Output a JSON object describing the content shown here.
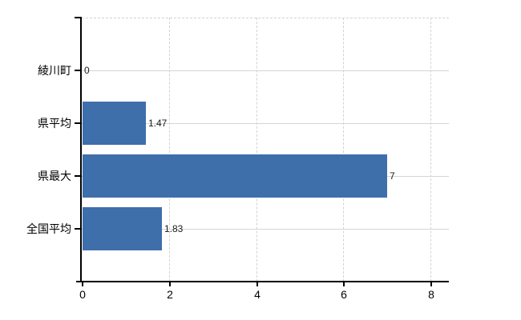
{
  "chart_data": {
    "type": "bar",
    "orientation": "horizontal",
    "title": "",
    "xlabel": "",
    "ylabel": "",
    "categories": [
      "綾川町",
      "県平均",
      "県最大",
      "全国平均"
    ],
    "values": [
      0,
      1.47,
      7,
      1.83
    ],
    "value_labels": [
      "0",
      "1.47",
      "7",
      "1.83"
    ],
    "series": [
      {
        "name": "",
        "values": [
          0,
          1.47,
          7,
          1.83
        ]
      }
    ],
    "x_tick_labels": [
      "0",
      "2",
      "4",
      "6",
      "8"
    ],
    "x_tick_values": [
      0,
      2,
      4,
      6,
      8
    ],
    "xlim": [
      0,
      8.42
    ],
    "grid": true,
    "grid_style": {
      "vertical": "dashed",
      "horizontal": "solid",
      "top_edge_line": "dashed"
    },
    "legend": false,
    "bar_color": "#3e6fab"
  },
  "colors": {
    "bar": "#3e6fab",
    "axis": "#000000",
    "grid_dashed": "#d6d0d6",
    "grid_solid": "#cfd9cf",
    "background": "#ffffff",
    "category_text": "#000000",
    "value_text": "#1b1b1b"
  }
}
